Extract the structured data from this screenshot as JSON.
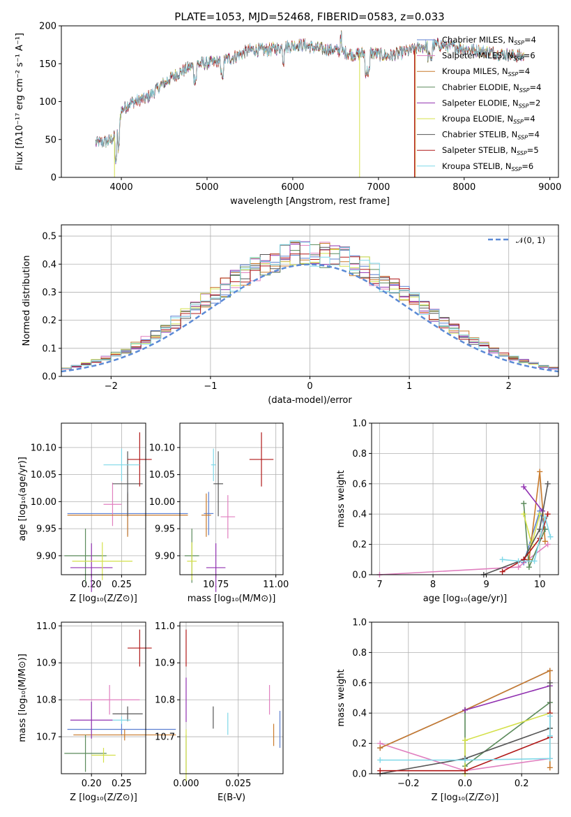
{
  "figure": {
    "title": "PLATE=1053, MJD=52468, FIBERID=0583, z=0.033"
  },
  "chart_data": [
    {
      "id": "spectrum",
      "type": "line",
      "title": "PLATE=1053, MJD=52468, FIBERID=0583, z=0.033",
      "xlabel": "wavelength [Angstrom, rest frame]",
      "ylabel": "Flux [fλ10⁻¹⁷ erg cm⁻² s⁻¹ A⁻¹]",
      "xlim": [
        3300,
        9100
      ],
      "ylim": [
        0,
        200
      ],
      "xticks": [
        4000,
        5000,
        6000,
        7000,
        8000,
        9000
      ],
      "yticks": [
        0,
        50,
        100,
        150,
        200
      ],
      "grid": false,
      "legend_position": "top-right",
      "continuum_x": [
        3700,
        3850,
        3950,
        4000,
        4100,
        4300,
        4500,
        4700,
        4900,
        5100,
        5300,
        5500,
        5700,
        5900,
        6100,
        6300,
        6500,
        6700,
        6900,
        7100,
        7300,
        7500,
        7700,
        7900,
        8100,
        8300,
        8500,
        8700
      ],
      "continuum_y": [
        45,
        48,
        55,
        88,
        98,
        105,
        125,
        140,
        150,
        152,
        158,
        168,
        168,
        172,
        175,
        170,
        168,
        162,
        165,
        160,
        165,
        172,
        175,
        172,
        168,
        165,
        162,
        160
      ],
      "series": [
        {
          "name": "Chabrier MILES, N$_{SSP}$=4",
          "label": "Chabrier MILES, N",
          "sub": "SSP",
          "count": "=4",
          "color": "#5b7fd1"
        },
        {
          "name": "Salpeter MILES, N$_{SSP}$=6",
          "label": "Salpeter MILES, N",
          "sub": "SSP",
          "count": "=6",
          "color": "#e07fbf"
        },
        {
          "name": "Kroupa MILES, N$_{SSP}$=4",
          "label": "Kroupa MILES, N",
          "sub": "SSP",
          "count": "=4",
          "color": "#c97a2b"
        },
        {
          "name": "Chabrier ELODIE, N$_{SSP}$=4",
          "label": "Chabrier ELODIE, N",
          "sub": "SSP",
          "count": "=4",
          "color": "#5a8a5a"
        },
        {
          "name": "Salpeter ELODIE, N$_{SSP}$=2",
          "label": "Salpeter ELODIE, N",
          "sub": "SSP",
          "count": "=2",
          "color": "#9030b0"
        },
        {
          "name": "Kroupa ELODIE, N$_{SSP}$=4",
          "label": "Kroupa ELODIE, N",
          "sub": "SSP",
          "count": "=4",
          "color": "#d4e04a"
        },
        {
          "name": "Chabrier STELIB, N$_{SSP}$=4",
          "label": "Chabrier STELIB, N",
          "sub": "SSP",
          "count": "=4",
          "color": "#555555"
        },
        {
          "name": "Salpeter STELIB, N$_{SSP}$=5",
          "label": "Salpeter STELIB, N",
          "sub": "SSP",
          "count": "=5",
          "color": "#b01818"
        },
        {
          "name": "Kroupa STELIB, N$_{SSP}$=6",
          "label": "Kroupa STELIB, N",
          "sub": "SSP",
          "count": "=6",
          "color": "#7fd8e8"
        }
      ],
      "drops": [
        {
          "series": 5,
          "x": 3920
        },
        {
          "series": 5,
          "x": 6780
        },
        {
          "series": 7,
          "x": 7420
        },
        {
          "series": 2,
          "x": 7430
        }
      ]
    },
    {
      "id": "residuals",
      "type": "line",
      "xlabel": "(data-model)/error",
      "ylabel": "Normed distribution",
      "xlim": [
        -2.5,
        2.5
      ],
      "ylim": [
        0,
        0.54
      ],
      "xticks": [
        -2,
        -1,
        0,
        1,
        2
      ],
      "yticks": [
        0.0,
        0.1,
        0.2,
        0.3,
        0.4,
        0.5
      ],
      "grid": true,
      "legend_position": "top-right",
      "legend_label": "𝒩(0, 1)",
      "gaussian": {
        "mean": 0,
        "sigma": 1,
        "color": "#5b8ad6"
      }
    },
    {
      "id": "age_vs_Z",
      "type": "scatter",
      "xlabel": "Z [log₁₀(Z/Z⊙)]",
      "ylabel": "age  [log₁₀(age/yr)]",
      "xlim": [
        0.15,
        0.29
      ],
      "ylim": [
        9.865,
        10.145
      ],
      "xticks": [
        0.2,
        0.25
      ],
      "yticks": [
        9.9,
        9.95,
        10.0,
        10.05,
        10.1
      ],
      "grid": true,
      "points": [
        {
          "x": 0.26,
          "y": 9.978,
          "xerr": 0.1,
          "yerr": 0.04,
          "color": "#5b7fd1"
        },
        {
          "x": 0.235,
          "y": 9.995,
          "xerr": 0.015,
          "yerr": 0.04,
          "color": "#e07fbf"
        },
        {
          "x": 0.26,
          "y": 9.975,
          "xerr": 0.1,
          "yerr": 0.04,
          "color": "#c97a2b"
        },
        {
          "x": 0.19,
          "y": 9.9,
          "xerr": 0.035,
          "yerr": 0.05,
          "color": "#5a8a5a"
        },
        {
          "x": 0.2,
          "y": 9.878,
          "xerr": 0.035,
          "yerr": 0.045,
          "color": "#9030b0"
        },
        {
          "x": 0.218,
          "y": 9.89,
          "xerr": 0.05,
          "yerr": 0.035,
          "color": "#d4e04a"
        },
        {
          "x": 0.26,
          "y": 10.033,
          "xerr": 0.025,
          "yerr": 0.06,
          "color": "#555555"
        },
        {
          "x": 0.28,
          "y": 10.078,
          "xerr": 0.02,
          "yerr": 0.05,
          "color": "#b01818"
        },
        {
          "x": 0.25,
          "y": 10.068,
          "xerr": 0.03,
          "yerr": 0.03,
          "color": "#7fd8e8"
        }
      ]
    },
    {
      "id": "age_vs_mass",
      "type": "scatter",
      "xlabel": "mass [log₁₀(M/M⊙)]",
      "ylabel": "",
      "xlim": [
        10.6,
        11.03
      ],
      "ylim": [
        9.865,
        10.145
      ],
      "xticks": [
        10.75,
        11.0
      ],
      "yticks": [
        9.9,
        9.95,
        10.0,
        10.05,
        10.1
      ],
      "grid": true,
      "points": [
        {
          "x": 10.72,
          "y": 9.978,
          "xerr": 0.02,
          "yerr": 0.04,
          "color": "#5b7fd1"
        },
        {
          "x": 10.8,
          "y": 9.972,
          "xerr": 0.03,
          "yerr": 0.04,
          "color": "#e07fbf"
        },
        {
          "x": 10.71,
          "y": 9.975,
          "xerr": 0.02,
          "yerr": 0.04,
          "color": "#c97a2b"
        },
        {
          "x": 10.65,
          "y": 9.9,
          "xerr": 0.03,
          "yerr": 0.05,
          "color": "#5a8a5a"
        },
        {
          "x": 10.75,
          "y": 9.878,
          "xerr": 0.04,
          "yerr": 0.045,
          "color": "#9030b0"
        },
        {
          "x": 10.65,
          "y": 9.89,
          "xerr": 0.02,
          "yerr": 0.035,
          "color": "#d4e04a"
        },
        {
          "x": 10.76,
          "y": 10.033,
          "xerr": 0.02,
          "yerr": 0.06,
          "color": "#555555"
        },
        {
          "x": 10.94,
          "y": 10.078,
          "xerr": 0.05,
          "yerr": 0.05,
          "color": "#b01818"
        },
        {
          "x": 10.74,
          "y": 10.068,
          "xerr": 0.01,
          "yerr": 0.03,
          "color": "#7fd8e8"
        }
      ]
    },
    {
      "id": "weight_vs_age",
      "type": "line",
      "xlabel": "age  [log₁₀(age/yr)]",
      "ylabel": "mass weight",
      "xlim": [
        6.85,
        10.35
      ],
      "ylim": [
        0,
        1.0
      ],
      "xticks": [
        7,
        8,
        9,
        10
      ],
      "yticks": [
        0.0,
        0.2,
        0.4,
        0.6,
        0.8,
        1.0
      ],
      "grid": true,
      "series": [
        {
          "color": "#5b7fd1",
          "x": [
            9.7,
            10.0,
            10.1
          ],
          "y": [
            0.08,
            0.42,
            0.3
          ]
        },
        {
          "color": "#e07fbf",
          "x": [
            7.0,
            9.6,
            10.15
          ],
          "y": [
            0.0,
            0.05,
            0.2
          ]
        },
        {
          "color": "#c97a2b",
          "x": [
            9.8,
            10.0,
            10.1
          ],
          "y": [
            0.1,
            0.68,
            0.22
          ]
        },
        {
          "color": "#5a8a5a",
          "x": [
            9.7,
            9.8,
            10.1
          ],
          "y": [
            0.47,
            0.05,
            0.3
          ]
        },
        {
          "color": "#9030b0",
          "x": [
            9.7,
            10.05
          ],
          "y": [
            0.58,
            0.42
          ]
        },
        {
          "color": "#d4e04a",
          "x": [
            9.7,
            9.85,
            10.0
          ],
          "y": [
            0.4,
            0.2,
            0.4
          ]
        },
        {
          "color": "#555555",
          "x": [
            8.95,
            9.7,
            10.0,
            10.15
          ],
          "y": [
            0.0,
            0.1,
            0.3,
            0.6
          ]
        },
        {
          "color": "#b01818",
          "x": [
            9.3,
            9.7,
            10.0,
            10.15
          ],
          "y": [
            0.02,
            0.1,
            0.24,
            0.4
          ]
        },
        {
          "color": "#7fd8e8",
          "x": [
            9.3,
            9.6,
            9.9,
            10.1,
            10.2
          ],
          "y": [
            0.1,
            0.09,
            0.09,
            0.38,
            0.25
          ]
        }
      ]
    },
    {
      "id": "mass_vs_Z",
      "type": "scatter",
      "xlabel": "Z [log₁₀(Z/Z⊙)]",
      "ylabel": "mass [log₁₀(M/M⊙)]",
      "xlim": [
        0.15,
        0.29
      ],
      "ylim": [
        10.6,
        11.01
      ],
      "xticks": [
        0.2,
        0.25
      ],
      "yticks": [
        10.7,
        10.8,
        10.9,
        11.0
      ],
      "grid": true,
      "points": [
        {
          "x": 0.25,
          "y": 10.72,
          "xerr": 0.09,
          "yerr": 0.015,
          "color": "#5b7fd1"
        },
        {
          "x": 0.23,
          "y": 10.8,
          "xerr": 0.05,
          "yerr": 0.04,
          "color": "#e07fbf"
        },
        {
          "x": 0.255,
          "y": 10.705,
          "xerr": 0.085,
          "yerr": 0.015,
          "color": "#c97a2b"
        },
        {
          "x": 0.19,
          "y": 10.655,
          "xerr": 0.035,
          "yerr": 0.05,
          "color": "#5a8a5a"
        },
        {
          "x": 0.2,
          "y": 10.745,
          "xerr": 0.035,
          "yerr": 0.05,
          "color": "#9030b0"
        },
        {
          "x": 0.22,
          "y": 10.65,
          "xerr": 0.02,
          "yerr": 0.02,
          "color": "#d4e04a"
        },
        {
          "x": 0.26,
          "y": 10.762,
          "xerr": 0.025,
          "yerr": 0.02,
          "color": "#555555"
        },
        {
          "x": 0.28,
          "y": 10.94,
          "xerr": 0.02,
          "yerr": 0.05,
          "color": "#b01818"
        },
        {
          "x": 0.25,
          "y": 10.745,
          "xerr": 0.015,
          "yerr": 0.01,
          "color": "#7fd8e8"
        }
      ]
    },
    {
      "id": "mass_vs_EBV",
      "type": "scatter",
      "xlabel": "E(B-V)",
      "ylabel": "",
      "xlim": [
        -0.003,
        0.0465
      ],
      "ylim": [
        10.6,
        11.01
      ],
      "xticks": [
        0.0,
        0.025
      ],
      "yticks": [
        10.7,
        10.8,
        10.9,
        11.0
      ],
      "grid": true,
      "points": [
        {
          "x": 0.045,
          "y": 10.72,
          "xerr": 0,
          "yerr": 0.05,
          "color": "#5b7fd1"
        },
        {
          "x": 0.04,
          "y": 10.8,
          "xerr": 0,
          "yerr": 0.04,
          "color": "#e07fbf"
        },
        {
          "x": 0.042,
          "y": 10.705,
          "xerr": 0,
          "yerr": 0.03,
          "color": "#c97a2b"
        },
        {
          "x": 0.0,
          "y": 10.655,
          "xerr": 0,
          "yerr": 0.05,
          "color": "#5a8a5a"
        },
        {
          "x": 0.0,
          "y": 10.8,
          "xerr": 0,
          "yerr": 0.06,
          "color": "#9030b0"
        },
        {
          "x": 0.0,
          "y": 10.65,
          "xerr": 0,
          "yerr": 0.07,
          "color": "#d4e04a"
        },
        {
          "x": 0.013,
          "y": 10.752,
          "xerr": 0,
          "yerr": 0.03,
          "color": "#555555"
        },
        {
          "x": 0.0,
          "y": 10.94,
          "xerr": 0,
          "yerr": 0.05,
          "color": "#b01818"
        },
        {
          "x": 0.02,
          "y": 10.735,
          "xerr": 0,
          "yerr": 0.03,
          "color": "#7fd8e8"
        }
      ]
    },
    {
      "id": "weight_vs_Z",
      "type": "line",
      "xlabel": "Z [log₁₀(Z/Z⊙)]",
      "ylabel": "mass weight",
      "xlim": [
        -0.33,
        0.33
      ],
      "ylim": [
        0,
        1.0
      ],
      "xticks": [
        -0.2,
        0.0,
        0.2
      ],
      "yticks": [
        0.0,
        0.2,
        0.4,
        0.6,
        0.8,
        1.0
      ],
      "grid": true,
      "series": [
        {
          "color": "#5b7fd1",
          "x": [
            -0.3,
            0.0,
            0.3
          ],
          "y": [
            0.17,
            0.42,
            0.68
          ]
        },
        {
          "color": "#e07fbf",
          "x": [
            -0.3,
            0.0,
            0.3
          ],
          "y": [
            0.2,
            0.02,
            0.1
          ]
        },
        {
          "color": "#c97a2b",
          "x": [
            -0.3,
            0.0,
            0.3,
            0.3
          ],
          "y": [
            0.17,
            0.42,
            0.68,
            0.04
          ]
        },
        {
          "color": "#5a8a5a",
          "x": [
            0.0,
            0.0,
            0.3,
            0.3
          ],
          "y": [
            0.42,
            0.05,
            0.47,
            0.3
          ]
        },
        {
          "color": "#9030b0",
          "x": [
            0.0,
            0.3
          ],
          "y": [
            0.42,
            0.58
          ]
        },
        {
          "color": "#d4e04a",
          "x": [
            0.0,
            0.0,
            0.3
          ],
          "y": [
            0.0,
            0.22,
            0.4
          ]
        },
        {
          "color": "#555555",
          "x": [
            -0.3,
            0.0,
            0.3,
            0.3
          ],
          "y": [
            0.0,
            0.1,
            0.3,
            0.6
          ]
        },
        {
          "color": "#b01818",
          "x": [
            -0.3,
            0.0,
            0.3,
            0.3
          ],
          "y": [
            0.02,
            0.02,
            0.24,
            0.4
          ]
        },
        {
          "color": "#7fd8e8",
          "x": [
            -0.3,
            0.0,
            0.3,
            0.3,
            0.3
          ],
          "y": [
            0.09,
            0.09,
            0.1,
            0.38,
            0.25
          ]
        }
      ]
    }
  ]
}
